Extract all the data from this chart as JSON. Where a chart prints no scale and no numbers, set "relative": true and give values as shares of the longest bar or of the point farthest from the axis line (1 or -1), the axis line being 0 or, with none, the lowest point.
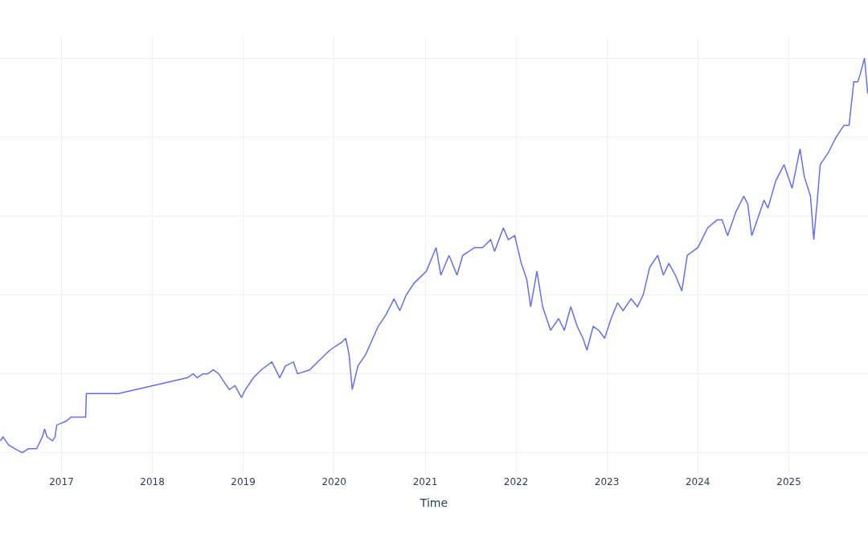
{
  "chart_data": {
    "type": "line",
    "xlabel": "Time",
    "relative": true,
    "grid": true,
    "xlim": [
      "2016-04-29",
      "2025-11-15"
    ],
    "xticks": [
      {
        "value": "2017-01-01",
        "label": "2017"
      },
      {
        "value": "2018-01-01",
        "label": "2018"
      },
      {
        "value": "2019-01-01",
        "label": "2019"
      },
      {
        "value": "2020-01-01",
        "label": "2020"
      },
      {
        "value": "2021-01-01",
        "label": "2021"
      },
      {
        "value": "2022-01-01",
        "label": "2022"
      },
      {
        "value": "2023-01-01",
        "label": "2023"
      },
      {
        "value": "2024-01-01",
        "label": "2024"
      },
      {
        "value": "2025-01-01",
        "label": "2025"
      }
    ],
    "x": [
      "2016-05-01",
      "2016-05-11",
      "2016-06-02",
      "2016-06-28",
      "2016-07-27",
      "2016-08-22",
      "2016-09-23",
      "2016-10-16",
      "2016-10-25",
      "2016-11-04",
      "2016-11-26",
      "2016-12-06",
      "2016-12-13",
      "2017-01-20",
      "2017-02-08",
      "2017-03-03",
      "2017-04-08",
      "2017-04-11",
      "2017-05-07",
      "2017-07-26",
      "2017-08-18",
      "2018-05-22",
      "2018-06-14",
      "2018-06-30",
      "2018-07-23",
      "2018-08-11",
      "2018-09-03",
      "2018-09-25",
      "2018-10-15",
      "2018-11-06",
      "2018-11-29",
      "2018-12-25",
      "2019-01-10",
      "2019-02-11",
      "2019-03-15",
      "2019-04-26",
      "2019-05-28",
      "2019-06-20",
      "2019-07-22",
      "2019-08-07",
      "2019-09-25",
      "2019-10-27",
      "2019-12-15",
      "2020-02-01",
      "2020-02-17",
      "2020-03-01",
      "2020-03-14",
      "2020-04-06",
      "2020-05-08",
      "2020-06-26",
      "2020-07-28",
      "2020-08-29",
      "2020-09-21",
      "2020-10-17",
      "2020-11-18",
      "2021-01-06",
      "2021-02-14",
      "2021-03-05",
      "2021-04-07",
      "2021-05-09",
      "2021-06-01",
      "2021-07-19",
      "2021-08-20",
      "2021-09-21",
      "2021-10-07",
      "2021-11-11",
      "2021-12-01",
      "2021-12-27",
      "2022-01-22",
      "2022-02-13",
      "2022-03-01",
      "2022-03-26",
      "2022-04-18",
      "2022-05-20",
      "2022-06-21",
      "2022-07-14",
      "2022-08-09",
      "2022-09-04",
      "2022-09-27",
      "2022-10-13",
      "2022-11-07",
      "2022-11-30",
      "2022-12-23",
      "2023-01-18",
      "2023-02-13",
      "2023-03-07",
      "2023-04-08",
      "2023-05-04",
      "2023-05-27",
      "2023-06-22",
      "2023-07-24",
      "2023-08-16",
      "2023-09-07",
      "2023-10-03",
      "2023-10-29",
      "2023-11-20",
      "2024-01-02",
      "2024-02-10",
      "2024-03-19",
      "2024-04-08",
      "2024-04-30",
      "2024-06-02",
      "2024-07-04",
      "2024-07-20",
      "2024-08-05",
      "2024-09-07",
      "2024-09-23",
      "2024-10-09",
      "2024-11-10",
      "2024-12-13",
      "2025-01-14",
      "2025-02-15",
      "2025-03-04",
      "2025-03-29",
      "2025-04-11",
      "2025-04-24",
      "2025-05-07",
      "2025-06-08",
      "2025-07-10",
      "2025-08-11",
      "2025-08-31",
      "2025-09-19",
      "2025-10-05",
      "2025-10-15",
      "2025-11-01",
      "2025-11-14"
    ],
    "series": [
      {
        "color": "#636efa",
        "values": [
          0.03,
          0.04,
          0.02,
          0.01,
          0,
          0.01,
          0.01,
          0.04,
          0.06,
          0.04,
          0.03,
          0.04,
          0.07,
          0.08,
          0.09,
          0.09,
          0.09,
          0.15,
          0.15,
          0.15,
          0.15,
          0.19,
          0.2,
          0.19,
          0.2,
          0.2,
          0.21,
          0.2,
          0.18,
          0.16,
          0.17,
          0.14,
          0.16,
          0.19,
          0.21,
          0.23,
          0.19,
          0.22,
          0.23,
          0.2,
          0.21,
          0.23,
          0.26,
          0.28,
          0.29,
          0.25,
          0.16,
          0.22,
          0.25,
          0.32,
          0.35,
          0.39,
          0.36,
          0.4,
          0.43,
          0.46,
          0.52,
          0.45,
          0.5,
          0.45,
          0.5,
          0.52,
          0.52,
          0.54,
          0.51,
          0.57,
          0.54,
          0.55,
          0.48,
          0.44,
          0.37,
          0.46,
          0.37,
          0.31,
          0.34,
          0.31,
          0.37,
          0.32,
          0.29,
          0.26,
          0.32,
          0.31,
          0.29,
          0.34,
          0.38,
          0.36,
          0.39,
          0.37,
          0.4,
          0.47,
          0.5,
          0.45,
          0.48,
          0.45,
          0.41,
          0.5,
          0.52,
          0.57,
          0.59,
          0.59,
          0.55,
          0.61,
          0.65,
          0.63,
          0.55,
          0.61,
          0.64,
          0.62,
          0.69,
          0.73,
          0.67,
          0.77,
          0.7,
          0.65,
          0.54,
          0.63,
          0.73,
          0.76,
          0.8,
          0.83,
          0.83,
          0.94,
          0.94,
          0.96,
          1,
          0.91
        ]
      }
    ]
  }
}
